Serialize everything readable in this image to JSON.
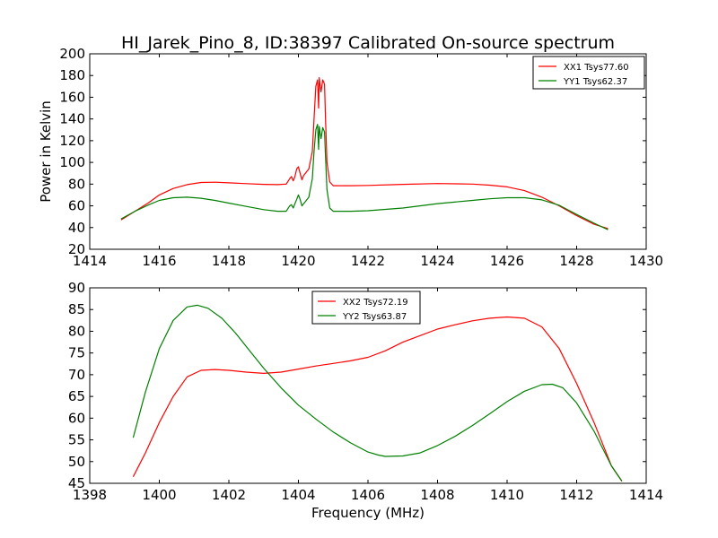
{
  "title": "HI_Jarek_Pino_8, ID:38397 Calibrated On-source spectrum",
  "colors": {
    "series1": "#ff0000",
    "series2": "#008000"
  },
  "chart_data": [
    {
      "type": "line",
      "ylabel": "Power in Kelvin",
      "xlabel": "",
      "xlim": [
        1414,
        1430
      ],
      "ylim": [
        20,
        200
      ],
      "xticks": [
        1414,
        1416,
        1418,
        1420,
        1422,
        1424,
        1426,
        1428,
        1430
      ],
      "yticks": [
        20,
        40,
        60,
        80,
        100,
        120,
        140,
        160,
        180,
        200
      ],
      "legend_position": "top-right",
      "series": [
        {
          "name": "XX1 Tsys77.60",
          "color": "#ff0000",
          "x": [
            1414.9,
            1415.3,
            1415.7,
            1416.0,
            1416.4,
            1416.8,
            1417.2,
            1417.6,
            1418.0,
            1418.5,
            1419.0,
            1419.4,
            1419.65,
            1419.75,
            1419.8,
            1419.85,
            1419.9,
            1419.95,
            1420.0,
            1420.05,
            1420.1,
            1420.15,
            1420.2,
            1420.3,
            1420.4,
            1420.45,
            1420.5,
            1420.55,
            1420.58,
            1420.6,
            1420.62,
            1420.65,
            1420.7,
            1420.75,
            1420.78,
            1420.82,
            1420.9,
            1421.0,
            1421.5,
            1422.0,
            1423.0,
            1424.0,
            1425.0,
            1425.5,
            1426.0,
            1426.5,
            1427.0,
            1427.5,
            1428.0,
            1428.5,
            1428.9
          ],
          "values": [
            47,
            55,
            63,
            70,
            76,
            79.5,
            81.5,
            81.8,
            81.2,
            80.4,
            79.8,
            79.5,
            80,
            85,
            87,
            83,
            87,
            94,
            96,
            90,
            84,
            88,
            90,
            94,
            110,
            140,
            170,
            176,
            150,
            178,
            172,
            165,
            176,
            172,
            140,
            100,
            82,
            78.5,
            78.5,
            78.8,
            79.8,
            80.5,
            80,
            79,
            77.5,
            74,
            68,
            60,
            51,
            43,
            39
          ]
        },
        {
          "name": "YY1 Tsys62.37",
          "color": "#008000",
          "x": [
            1414.9,
            1415.3,
            1415.7,
            1416.0,
            1416.4,
            1416.8,
            1417.2,
            1417.6,
            1418.0,
            1418.5,
            1419.0,
            1419.4,
            1419.65,
            1419.75,
            1419.8,
            1419.85,
            1419.9,
            1419.95,
            1420.0,
            1420.05,
            1420.1,
            1420.15,
            1420.2,
            1420.3,
            1420.4,
            1420.45,
            1420.5,
            1420.55,
            1420.58,
            1420.6,
            1420.62,
            1420.65,
            1420.7,
            1420.75,
            1420.78,
            1420.82,
            1420.9,
            1421.0,
            1421.5,
            1422.0,
            1423.0,
            1424.0,
            1425.0,
            1425.5,
            1426.0,
            1426.5,
            1427.0,
            1427.5,
            1428.0,
            1428.5,
            1428.9
          ],
          "values": [
            48,
            55,
            61,
            65,
            67.5,
            68,
            67,
            65,
            62.5,
            59.5,
            56.5,
            55,
            55,
            60,
            61,
            58,
            62,
            66,
            70,
            66,
            60,
            62,
            64,
            68,
            85,
            110,
            130,
            135,
            112,
            133,
            128,
            122,
            132,
            128,
            105,
            75,
            58,
            55,
            55,
            55.5,
            58,
            62,
            65,
            66.5,
            67.5,
            67.5,
            65.5,
            60.5,
            52,
            44,
            38
          ]
        }
      ]
    },
    {
      "type": "line",
      "xlabel": "Frequency (MHz)",
      "ylabel": "",
      "xlim": [
        1398,
        1414
      ],
      "ylim": [
        45,
        90
      ],
      "xticks": [
        1398,
        1400,
        1402,
        1404,
        1406,
        1408,
        1410,
        1412,
        1414
      ],
      "yticks": [
        45,
        50,
        55,
        60,
        65,
        70,
        75,
        80,
        85,
        90
      ],
      "legend_position": "top-center",
      "series": [
        {
          "name": "XX2 Tsys72.19",
          "color": "#ff0000",
          "x": [
            1399.25,
            1399.6,
            1400.0,
            1400.4,
            1400.8,
            1401.2,
            1401.6,
            1402.0,
            1402.5,
            1403.0,
            1403.5,
            1404.0,
            1404.5,
            1405.0,
            1405.5,
            1406.0,
            1406.5,
            1407.0,
            1407.5,
            1408.0,
            1408.5,
            1409.0,
            1409.5,
            1410.0,
            1410.5,
            1411.0,
            1411.5,
            1412.0,
            1412.5,
            1413.0,
            1413.3
          ],
          "values": [
            46.5,
            52,
            59,
            65,
            69.5,
            71,
            71.2,
            71,
            70.6,
            70.3,
            70.6,
            71.3,
            72,
            72.6,
            73.2,
            74,
            75.5,
            77.5,
            79,
            80.5,
            81.5,
            82.4,
            83,
            83.3,
            83,
            81,
            76,
            68,
            59,
            49,
            45.5
          ]
        },
        {
          "name": "YY2 Tsys63.87",
          "color": "#008000",
          "x": [
            1399.25,
            1399.6,
            1400.0,
            1400.4,
            1400.8,
            1401.1,
            1401.4,
            1401.8,
            1402.2,
            1402.6,
            1403.0,
            1403.5,
            1404.0,
            1404.5,
            1405.0,
            1405.5,
            1406.0,
            1406.3,
            1406.5,
            1407.0,
            1407.5,
            1408.0,
            1408.5,
            1409.0,
            1409.5,
            1410.0,
            1410.5,
            1411.0,
            1411.3,
            1411.6,
            1412.0,
            1412.5,
            1413.0,
            1413.3
          ],
          "values": [
            55.5,
            66,
            76,
            82.5,
            85.6,
            86,
            85.3,
            83,
            79.5,
            75.5,
            71.5,
            67,
            63,
            59.8,
            56.8,
            54.3,
            52.2,
            51.5,
            51.2,
            51.3,
            52,
            53.7,
            55.8,
            58.3,
            61,
            63.8,
            66.2,
            67.7,
            67.8,
            67,
            63.5,
            57,
            49,
            45.5
          ]
        }
      ]
    }
  ]
}
